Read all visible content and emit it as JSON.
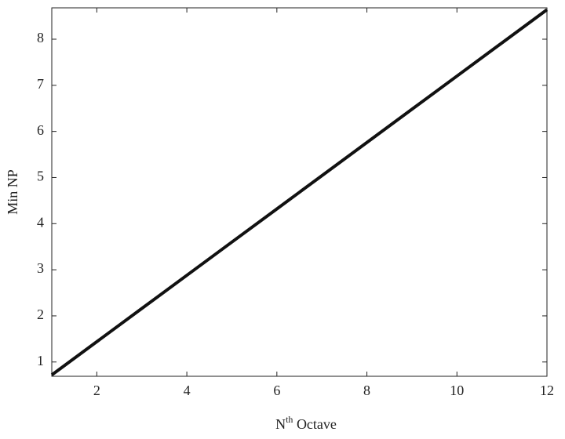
{
  "chart_data": {
    "type": "line",
    "xlabel": {
      "base": "N",
      "sup": "th",
      "rest": " Octave"
    },
    "ylabel": "Min NP",
    "x": [
      1,
      2,
      3,
      4,
      5,
      6,
      7,
      8,
      9,
      10,
      11,
      12
    ],
    "series": [
      {
        "color": "#111111",
        "values": [
          0.72,
          1.44,
          2.16,
          2.88,
          3.6,
          4.32,
          5.04,
          5.76,
          6.48,
          7.2,
          7.92,
          8.64
        ]
      }
    ],
    "xlim": [
      1,
      12
    ],
    "xticks": [
      2,
      4,
      6,
      8,
      10,
      12
    ],
    "ylim": [
      0.69,
      8.68
    ],
    "yticks": [
      1,
      2,
      3,
      4,
      5,
      6,
      7,
      8
    ],
    "grid": false
  }
}
